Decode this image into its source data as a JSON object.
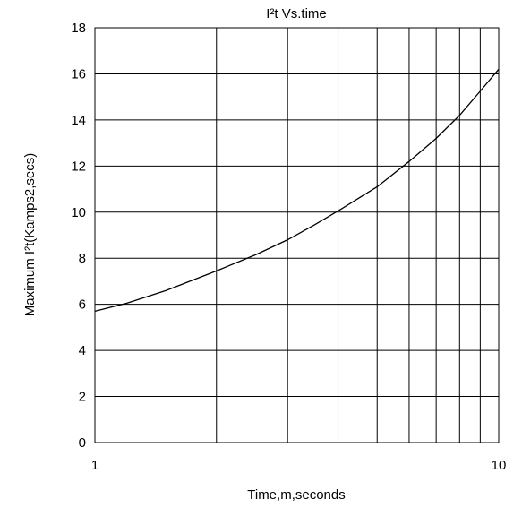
{
  "chart_data": {
    "type": "line",
    "title": "I²t  Vs.time",
    "xlabel": "Time,m,seconds",
    "ylabel": "Maximum I²t(Kamps2,secs)",
    "x_scale": "log",
    "xlim": [
      1,
      10
    ],
    "ylim": [
      0,
      18
    ],
    "x_tick_labels": [
      "1",
      "10"
    ],
    "y_tick_labels": [
      "0",
      "2",
      "4",
      "6",
      "8",
      "10",
      "12",
      "14",
      "16",
      "18"
    ],
    "grid": true,
    "legend": "none",
    "line_color": "#000000",
    "series": [
      {
        "x": [
          1,
          1.2,
          1.5,
          2,
          2.5,
          3,
          3.5,
          4,
          5,
          6,
          7,
          8,
          9,
          10
        ],
        "y": [
          5.7,
          6.05,
          6.6,
          7.45,
          8.15,
          8.8,
          9.45,
          10.05,
          11.1,
          12.2,
          13.2,
          14.2,
          15.25,
          16.2
        ]
      }
    ]
  }
}
